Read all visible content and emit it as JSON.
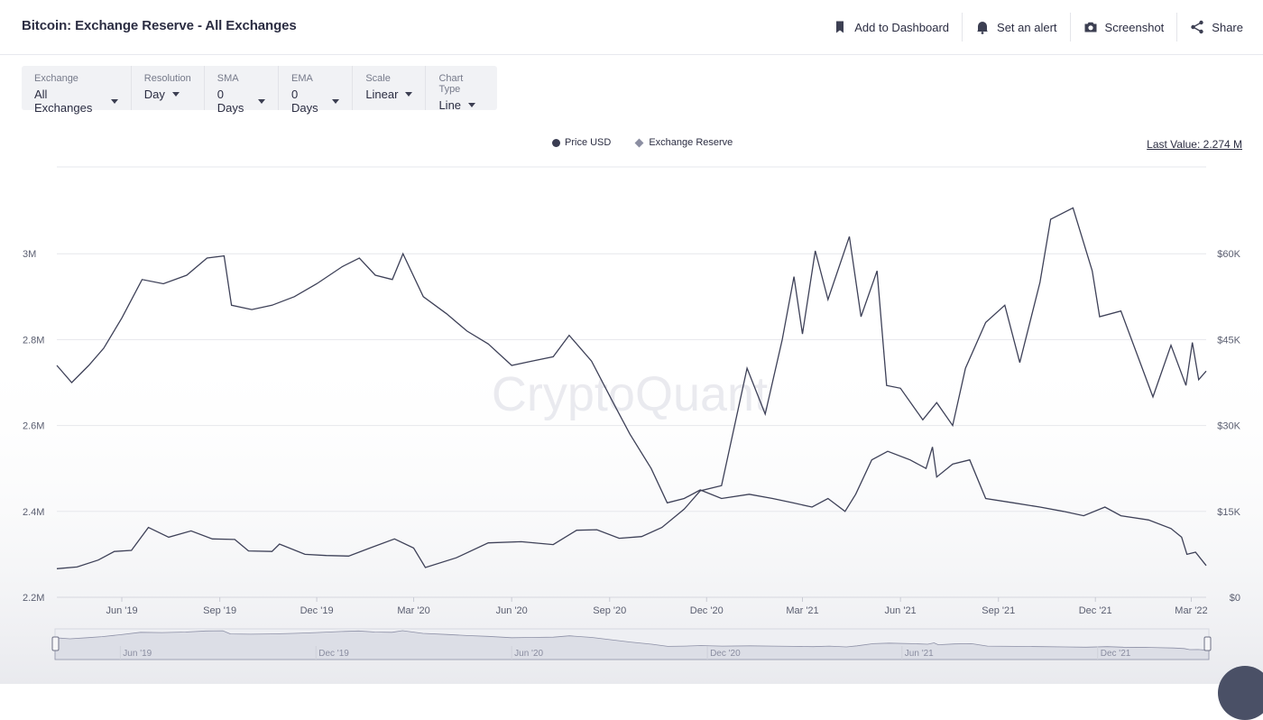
{
  "header": {
    "title": "Bitcoin: Exchange Reserve - All Exchanges",
    "actions": [
      {
        "label": "Add to Dashboard",
        "icon": "bookmark-icon"
      },
      {
        "label": "Set an alert",
        "icon": "bell-icon"
      },
      {
        "label": "Screenshot",
        "icon": "camera-icon"
      },
      {
        "label": "Share",
        "icon": "share-icon"
      }
    ]
  },
  "controls": [
    {
      "label": "Exchange",
      "value": "All Exchanges"
    },
    {
      "label": "Resolution",
      "value": "Day"
    },
    {
      "label": "SMA",
      "value": "0 Days"
    },
    {
      "label": "EMA",
      "value": "0 Days"
    },
    {
      "label": "Scale",
      "value": "Linear"
    },
    {
      "label": "Chart Type",
      "value": "Line"
    }
  ],
  "legend": {
    "price": "Price USD",
    "reserve": "Exchange Reserve"
  },
  "last_value": "Last Value: 2.274 M",
  "watermark": "CryptoQuant",
  "colors": {
    "line": "#3e4158",
    "grid": "#e6e7ec",
    "navigator_fill": "#dcdee6"
  },
  "chart_data": {
    "type": "line",
    "x_ticks": [
      "Jun '19",
      "Sep '19",
      "Dec '19",
      "Mar '20",
      "Jun '20",
      "Sep '20",
      "Dec '20",
      "Mar '21",
      "Jun '21",
      "Sep '21",
      "Dec '21",
      "Mar '22"
    ],
    "y_left_ticks": [
      "2.2M",
      "2.4M",
      "2.6M",
      "2.8M",
      "3M"
    ],
    "y_right_ticks": [
      "$0",
      "$15K",
      "$30K",
      "$45K",
      "$60K"
    ],
    "y_left_range": [
      2200000,
      3000000
    ],
    "y_right_range": [
      0,
      60000
    ],
    "navigator_ticks": [
      "Jun '19",
      "Dec '19",
      "Jun '20",
      "Dec '20",
      "Jun '21",
      "Dec '21"
    ],
    "grid": true,
    "legend_position": "top-center",
    "series": [
      {
        "name": "Exchange Reserve",
        "axis": "left",
        "points": [
          [
            "2019-04-01",
            2740000
          ],
          [
            "2019-04-15",
            2700000
          ],
          [
            "2019-05-01",
            2740000
          ],
          [
            "2019-05-15",
            2780000
          ],
          [
            "2019-06-01",
            2850000
          ],
          [
            "2019-06-20",
            2940000
          ],
          [
            "2019-07-10",
            2930000
          ],
          [
            "2019-08-01",
            2950000
          ],
          [
            "2019-08-20",
            2990000
          ],
          [
            "2019-09-05",
            2995000
          ],
          [
            "2019-09-12",
            2880000
          ],
          [
            "2019-10-01",
            2870000
          ],
          [
            "2019-10-20",
            2880000
          ],
          [
            "2019-11-10",
            2900000
          ],
          [
            "2019-12-01",
            2930000
          ],
          [
            "2019-12-25",
            2970000
          ],
          [
            "2020-01-10",
            2990000
          ],
          [
            "2020-01-25",
            2950000
          ],
          [
            "2020-02-10",
            2940000
          ],
          [
            "2020-02-20",
            3000000
          ],
          [
            "2020-03-10",
            2900000
          ],
          [
            "2020-04-01",
            2860000
          ],
          [
            "2020-04-20",
            2820000
          ],
          [
            "2020-05-10",
            2790000
          ],
          [
            "2020-06-01",
            2740000
          ],
          [
            "2020-06-20",
            2750000
          ],
          [
            "2020-07-10",
            2760000
          ],
          [
            "2020-07-25",
            2810000
          ],
          [
            "2020-08-15",
            2750000
          ],
          [
            "2020-09-05",
            2650000
          ],
          [
            "2020-09-20",
            2580000
          ],
          [
            "2020-10-10",
            2500000
          ],
          [
            "2020-10-25",
            2420000
          ],
          [
            "2020-11-10",
            2430000
          ],
          [
            "2020-11-25",
            2450000
          ],
          [
            "2020-12-15",
            2430000
          ],
          [
            "2021-01-10",
            2440000
          ],
          [
            "2021-02-01",
            2430000
          ],
          [
            "2021-02-20",
            2420000
          ],
          [
            "2021-03-10",
            2410000
          ],
          [
            "2021-03-25",
            2430000
          ],
          [
            "2021-04-10",
            2400000
          ],
          [
            "2021-04-20",
            2440000
          ],
          [
            "2021-05-05",
            2520000
          ],
          [
            "2021-05-20",
            2540000
          ],
          [
            "2021-06-10",
            2520000
          ],
          [
            "2021-06-25",
            2500000
          ],
          [
            "2021-07-01",
            2550000
          ],
          [
            "2021-07-05",
            2480000
          ],
          [
            "2021-07-20",
            2510000
          ],
          [
            "2021-08-05",
            2520000
          ],
          [
            "2021-08-20",
            2430000
          ],
          [
            "2021-09-15",
            2420000
          ],
          [
            "2021-10-10",
            2410000
          ],
          [
            "2021-11-01",
            2400000
          ],
          [
            "2021-11-20",
            2390000
          ],
          [
            "2021-12-10",
            2410000
          ],
          [
            "2021-12-25",
            2390000
          ],
          [
            "2022-01-20",
            2380000
          ],
          [
            "2022-02-10",
            2360000
          ],
          [
            "2022-02-20",
            2340000
          ],
          [
            "2022-02-25",
            2300000
          ],
          [
            "2022-03-05",
            2305000
          ],
          [
            "2022-03-15",
            2274000
          ]
        ]
      },
      {
        "name": "Price USD",
        "axis": "right",
        "points": [
          [
            "2019-04-01",
            5000
          ],
          [
            "2019-04-20",
            5300
          ],
          [
            "2019-05-10",
            6500
          ],
          [
            "2019-05-25",
            8000
          ],
          [
            "2019-06-10",
            8200
          ],
          [
            "2019-06-26",
            12200
          ],
          [
            "2019-07-15",
            10500
          ],
          [
            "2019-08-05",
            11600
          ],
          [
            "2019-08-25",
            10200
          ],
          [
            "2019-09-15",
            10100
          ],
          [
            "2019-09-28",
            8100
          ],
          [
            "2019-10-20",
            8000
          ],
          [
            "2019-10-27",
            9300
          ],
          [
            "2019-11-20",
            7500
          ],
          [
            "2019-12-10",
            7300
          ],
          [
            "2019-12-31",
            7200
          ],
          [
            "2020-01-20",
            8600
          ],
          [
            "2020-02-12",
            10200
          ],
          [
            "2020-03-01",
            8600
          ],
          [
            "2020-03-12",
            5200
          ],
          [
            "2020-04-10",
            6900
          ],
          [
            "2020-05-10",
            9500
          ],
          [
            "2020-06-10",
            9700
          ],
          [
            "2020-07-10",
            9200
          ],
          [
            "2020-08-01",
            11700
          ],
          [
            "2020-08-20",
            11800
          ],
          [
            "2020-09-10",
            10300
          ],
          [
            "2020-10-01",
            10600
          ],
          [
            "2020-10-20",
            12200
          ],
          [
            "2020-11-10",
            15400
          ],
          [
            "2020-11-25",
            18600
          ],
          [
            "2020-12-15",
            19500
          ],
          [
            "2021-01-08",
            40000
          ],
          [
            "2021-01-25",
            32000
          ],
          [
            "2021-02-10",
            45000
          ],
          [
            "2021-02-21",
            56000
          ],
          [
            "2021-03-01",
            46000
          ],
          [
            "2021-03-13",
            60500
          ],
          [
            "2021-03-25",
            52000
          ],
          [
            "2021-04-14",
            63000
          ],
          [
            "2021-04-25",
            49000
          ],
          [
            "2021-05-10",
            57000
          ],
          [
            "2021-05-19",
            37000
          ],
          [
            "2021-06-01",
            36500
          ],
          [
            "2021-06-22",
            31000
          ],
          [
            "2021-07-05",
            34000
          ],
          [
            "2021-07-20",
            30000
          ],
          [
            "2021-08-01",
            40000
          ],
          [
            "2021-08-20",
            48000
          ],
          [
            "2021-09-07",
            51000
          ],
          [
            "2021-09-21",
            41000
          ],
          [
            "2021-10-10",
            55000
          ],
          [
            "2021-10-20",
            66000
          ],
          [
            "2021-11-10",
            68000
          ],
          [
            "2021-11-28",
            57000
          ],
          [
            "2021-12-05",
            49000
          ],
          [
            "2021-12-25",
            50000
          ],
          [
            "2022-01-10",
            42000
          ],
          [
            "2022-01-24",
            35000
          ],
          [
            "2022-02-10",
            44000
          ],
          [
            "2022-02-24",
            37000
          ],
          [
            "2022-03-02",
            44500
          ],
          [
            "2022-03-08",
            38000
          ],
          [
            "2022-03-15",
            39500
          ]
        ]
      }
    ]
  }
}
